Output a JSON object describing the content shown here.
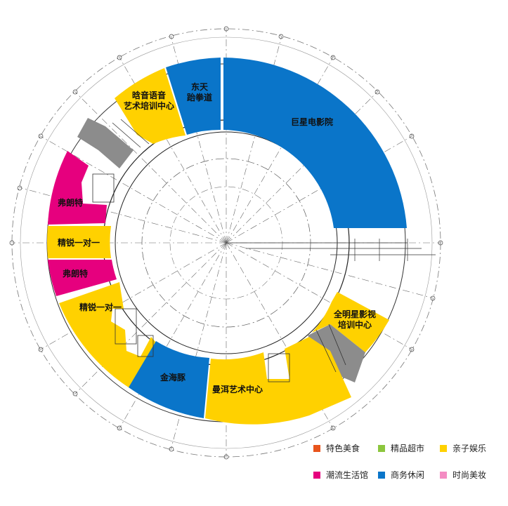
{
  "units": {
    "cinema": "巨星电影院",
    "taekwondo_line1": "东天",
    "taekwondo_line2": "跆拳道",
    "art_line1": "晗音语音",
    "art_line2": "艺术培训中心",
    "fenlangte_1": "弗朗特",
    "jingrui_1": "精锐一对一",
    "fenlangte_2": "弗朗特",
    "jingrui_2": "精锐一对一",
    "jinhaitun": "金海豚",
    "maner": "曼洱艺术中心",
    "quanming_line1": "全明星影视",
    "quanming_line2": "培训中心"
  },
  "legend": [
    {
      "label": "特色美食",
      "color": "#e8541c"
    },
    {
      "label": "精品超市",
      "color": "#8cc63e"
    },
    {
      "label": "亲子娱乐",
      "color": "#ffd100"
    },
    {
      "label": "潮流生活馆",
      "color": "#e6007e"
    },
    {
      "label": "商务休闲",
      "color": "#0a75c9"
    },
    {
      "label": "时尚美妆",
      "color": "#f48cc3"
    }
  ],
  "colors": {
    "yellow": "#ffd100",
    "blue": "#0a75c9",
    "magenta": "#e6007e",
    "gray": "#8c8c8c"
  }
}
